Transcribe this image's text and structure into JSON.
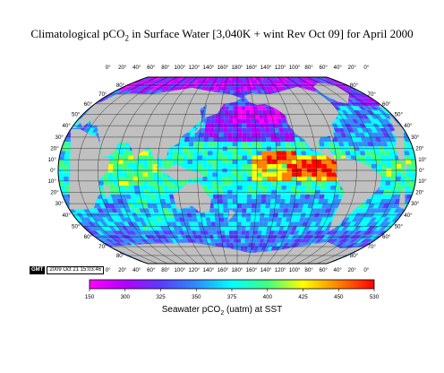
{
  "title": {
    "prefix": "Climatological pCO",
    "subscript": "2",
    "suffix": " in Surface Water [3,040K + wint Rev Oct 09] for April 2000"
  },
  "gmt_stamp": {
    "badge": "GMT",
    "timestamp": "2009 Oct 21 15:03:46"
  },
  "colorbar": {
    "ticks": [
      "150",
      "300",
      "325",
      "350",
      "375",
      "400",
      "425",
      "450",
      "530"
    ],
    "label_prefix": "Seawater  pCO",
    "label_subscript": "2",
    "label_suffix": " (uatm) at SST",
    "colors": [
      "#ff00ff",
      "#b400ff",
      "#5a3cff",
      "#2e8cff",
      "#00ffff",
      "#40ff80",
      "#ffff00",
      "#ff8000",
      "#ff0000"
    ]
  },
  "map": {
    "projection": "Robinson",
    "land_color": "#c0c0c0",
    "ocean_colors": [
      "#ff00ff",
      "#b400ff",
      "#5a3cff",
      "#2e8cff",
      "#00ffff",
      "#40ff80",
      "#ffff00",
      "#ff8000",
      "#ff0000"
    ],
    "lon_ticks": [
      "0°",
      "20°",
      "40°",
      "60°",
      "80°",
      "100°",
      "120°",
      "140°",
      "160°",
      "180°",
      "160°",
      "140°",
      "120°",
      "100°",
      "80°",
      "60°",
      "40°",
      "20°",
      "0°"
    ],
    "lat_ticks": [
      {
        "label": "80°",
        "lat": 80
      },
      {
        "label": "70°",
        "lat": 70
      },
      {
        "label": "60°",
        "lat": 60
      },
      {
        "label": "50°",
        "lat": 50
      },
      {
        "label": "40°",
        "lat": 40
      },
      {
        "label": "30°",
        "lat": 30
      },
      {
        "label": "20°",
        "lat": 20
      },
      {
        "label": "10°",
        "lat": 10
      },
      {
        "label": "0°",
        "lat": 0
      },
      {
        "label": "10°",
        "lat": -10
      },
      {
        "label": "20°",
        "lat": -20
      },
      {
        "label": "30°",
        "lat": -30
      },
      {
        "label": "40°",
        "lat": -40
      },
      {
        "label": "50°",
        "lat": -50
      },
      {
        "label": "60°",
        "lat": -60
      },
      {
        "label": "70°",
        "lat": -70
      },
      {
        "label": "80°",
        "lat": -80
      }
    ]
  }
}
